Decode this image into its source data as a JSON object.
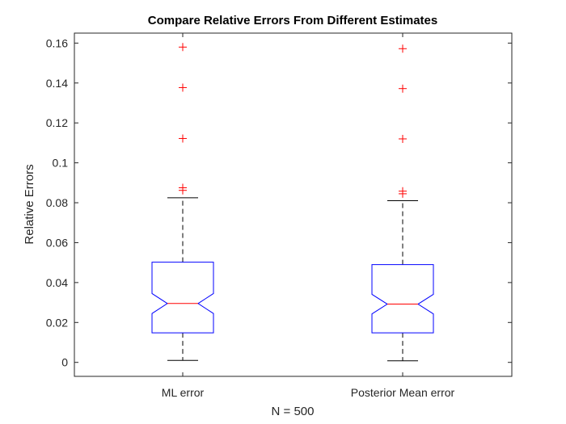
{
  "chart_data": {
    "type": "boxplot",
    "title": "Compare Relative Errors From Different Estimates",
    "xlabel": "N = 500",
    "ylabel": "Relative Errors",
    "ylim": [
      -0.007,
      0.165
    ],
    "yticks": [
      0,
      0.02,
      0.04,
      0.06,
      0.08,
      0.1,
      0.12,
      0.14,
      0.16
    ],
    "ytick_labels": [
      "0",
      "0.02",
      "0.04",
      "0.06",
      "0.08",
      "0.1",
      "0.12",
      "0.14",
      "0.16"
    ],
    "notched": true,
    "grid": false,
    "categories": [
      "ML error",
      "Posterior Mean error"
    ],
    "boxes": [
      {
        "label": "ML error",
        "q1": 0.0148,
        "median": 0.0295,
        "q3": 0.0502,
        "notch_low": 0.0245,
        "notch_high": 0.0345,
        "whisker_low": 0.001,
        "whisker_high": 0.0825,
        "outliers": [
          0.0862,
          0.0875,
          0.1122,
          0.1377,
          0.158
        ]
      },
      {
        "label": "Posterior Mean error",
        "q1": 0.0148,
        "median": 0.0292,
        "q3": 0.049,
        "notch_low": 0.0243,
        "notch_high": 0.0341,
        "whisker_low": 0.0008,
        "whisker_high": 0.081,
        "outliers": [
          0.0845,
          0.0858,
          0.112,
          0.1372,
          0.1572
        ]
      }
    ],
    "colors": {
      "box": "#0000ff",
      "median": "#ff0000",
      "outlier": "#ff0000",
      "whisker": "#000000"
    }
  }
}
